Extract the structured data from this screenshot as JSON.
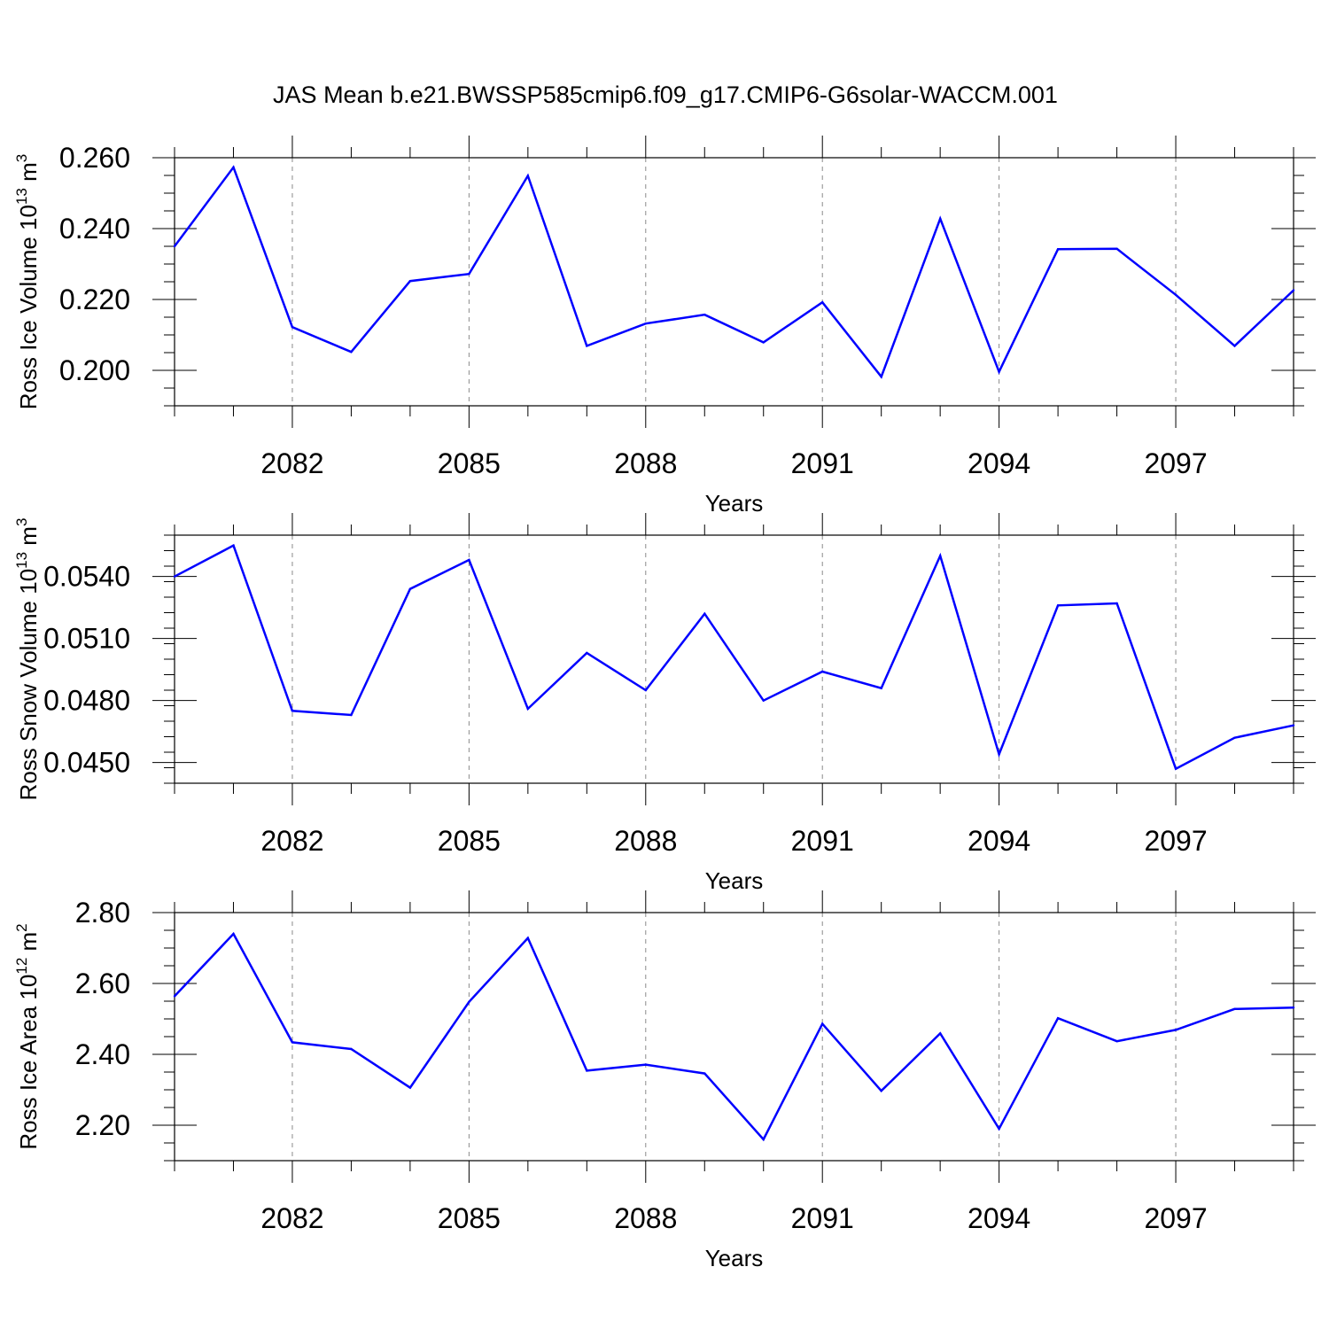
{
  "title": "JAS Mean b.e21.BWSSP585cmip6.f09_g17.CMIP6-G6solar-WACCM.001",
  "chart_data": [
    {
      "type": "line",
      "ylabel": {
        "prefix": "Ross Ice Volume 10",
        "exp": "13",
        "unit": " m",
        "unit_exp": "3"
      },
      "xlabel": "Years",
      "xlim": [
        2080,
        2099
      ],
      "ylim": [
        0.19,
        0.26
      ],
      "yticks": [
        0.2,
        0.22,
        0.24,
        0.26
      ],
      "ytick_labels": [
        "0.200",
        "0.220",
        "0.240",
        "0.260"
      ],
      "xticks": [
        2082,
        2085,
        2088,
        2091,
        2094,
        2097
      ],
      "xtick_labels": [
        "2082",
        "2085",
        "2088",
        "2091",
        "2094",
        "2097"
      ],
      "grid": "dashed vertical at major x ticks",
      "series": [
        {
          "color": "#0000ff",
          "x": [
            2080,
            2081,
            2082,
            2083,
            2084,
            2085,
            2086,
            2087,
            2088,
            2089,
            2090,
            2091,
            2092,
            2093,
            2094,
            2095,
            2096,
            2097,
            2098,
            2099
          ],
          "values": [
            0.235,
            0.2573,
            0.2122,
            0.2052,
            0.2252,
            0.2272,
            0.2549,
            0.2069,
            0.2132,
            0.2157,
            0.2079,
            0.2192,
            0.1982,
            0.2428,
            0.1996,
            0.2342,
            0.2343,
            0.2213,
            0.2069,
            0.2226
          ]
        }
      ]
    },
    {
      "type": "line",
      "ylabel": {
        "prefix": "Ross Snow Volume 10",
        "exp": "13",
        "unit": " m",
        "unit_exp": "3"
      },
      "xlabel": "Years",
      "xlim": [
        2080,
        2099
      ],
      "ylim": [
        0.044,
        0.056
      ],
      "yticks": [
        0.045,
        0.048,
        0.051,
        0.054
      ],
      "ytick_labels": [
        "0.0450",
        "0.0480",
        "0.0510",
        "0.0540"
      ],
      "xticks": [
        2082,
        2085,
        2088,
        2091,
        2094,
        2097
      ],
      "xtick_labels": [
        "2082",
        "2085",
        "2088",
        "2091",
        "2094",
        "2097"
      ],
      "grid": "dashed vertical at major x ticks",
      "series": [
        {
          "color": "#0000ff",
          "x": [
            2080,
            2081,
            2082,
            2083,
            2084,
            2085,
            2086,
            2087,
            2088,
            2089,
            2090,
            2091,
            2092,
            2093,
            2094,
            2095,
            2096,
            2097,
            2098,
            2099
          ],
          "values": [
            0.054,
            0.0555,
            0.0475,
            0.0473,
            0.0534,
            0.0548,
            0.0476,
            0.0503,
            0.0485,
            0.0522,
            0.048,
            0.0494,
            0.0486,
            0.055,
            0.0454,
            0.0526,
            0.0527,
            0.0447,
            0.0462,
            0.0468
          ]
        }
      ]
    },
    {
      "type": "line",
      "ylabel": {
        "prefix": "Ross Ice Area 10",
        "exp": "12",
        "unit": " m",
        "unit_exp": "2"
      },
      "xlabel": "Years",
      "xlim": [
        2080,
        2099
      ],
      "ylim": [
        2.1,
        2.8
      ],
      "yticks": [
        2.2,
        2.4,
        2.6,
        2.8
      ],
      "ytick_labels": [
        "2.20",
        "2.40",
        "2.60",
        "2.80"
      ],
      "xticks": [
        2082,
        2085,
        2088,
        2091,
        2094,
        2097
      ],
      "xtick_labels": [
        "2082",
        "2085",
        "2088",
        "2091",
        "2094",
        "2097"
      ],
      "grid": "dashed vertical at major x ticks",
      "series": [
        {
          "color": "#0000ff",
          "x": [
            2080,
            2081,
            2082,
            2083,
            2084,
            2085,
            2086,
            2087,
            2088,
            2089,
            2090,
            2091,
            2092,
            2093,
            2094,
            2095,
            2096,
            2097,
            2098,
            2099
          ],
          "values": [
            2.564,
            2.74,
            2.434,
            2.415,
            2.306,
            2.548,
            2.728,
            2.354,
            2.371,
            2.346,
            2.16,
            2.486,
            2.297,
            2.459,
            2.19,
            2.502,
            2.437,
            2.469,
            2.528,
            2.532
          ]
        }
      ]
    }
  ]
}
